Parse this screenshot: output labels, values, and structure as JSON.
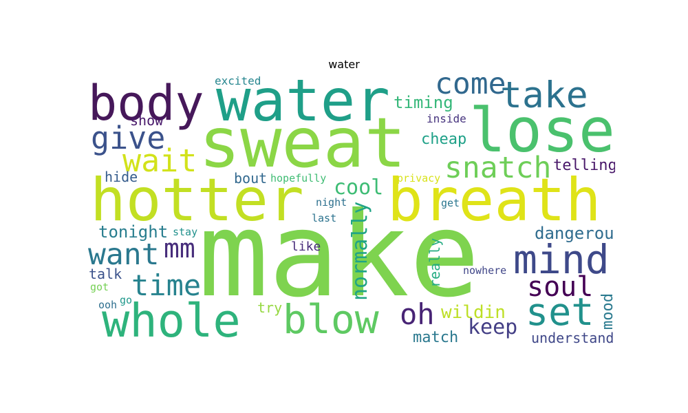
{
  "title": "water",
  "cloud": {
    "words": [
      {
        "text": "make",
        "color": "#7ed34f"
      },
      {
        "text": "sweat",
        "color": "#8bd646"
      },
      {
        "text": "hotter",
        "color": "#c2df23"
      },
      {
        "text": "breath",
        "color": "#dfe318"
      },
      {
        "text": "water",
        "color": "#1f9f88"
      },
      {
        "text": "lose",
        "color": "#4ac16d"
      },
      {
        "text": "body",
        "color": "#46185a"
      },
      {
        "text": "whole",
        "color": "#2eb37c"
      },
      {
        "text": "blow",
        "color": "#5ec962"
      },
      {
        "text": "mind",
        "color": "#3e4989"
      },
      {
        "text": "take",
        "color": "#2c728e"
      },
      {
        "text": "set",
        "color": "#21918c"
      },
      {
        "text": "come",
        "color": "#31688e"
      },
      {
        "text": "give",
        "color": "#3b528b"
      },
      {
        "text": "wait",
        "color": "#d2e21b"
      },
      {
        "text": "snatch",
        "color": "#6ece58"
      },
      {
        "text": "want",
        "color": "#2a788e"
      },
      {
        "text": "time",
        "color": "#26828e"
      },
      {
        "text": "soul",
        "color": "#440154"
      },
      {
        "text": "oh",
        "color": "#482475"
      },
      {
        "text": "mm",
        "color": "#472d7b"
      },
      {
        "text": "cool",
        "color": "#3dbc74"
      },
      {
        "text": "normally",
        "color": "#20a486"
      },
      {
        "text": "keep",
        "color": "#433e85"
      },
      {
        "text": "wildin",
        "color": "#bddf26"
      },
      {
        "text": "dangerous",
        "color": "#2f6c8e"
      },
      {
        "text": "tonight",
        "color": "#287d8e"
      },
      {
        "text": "timing",
        "color": "#35b779"
      },
      {
        "text": "telling",
        "color": "#481769"
      },
      {
        "text": "match",
        "color": "#2a788e"
      },
      {
        "text": "understand",
        "color": "#3f4788"
      },
      {
        "text": "mood",
        "color": "#29798e"
      },
      {
        "text": "cheap",
        "color": "#1fa188"
      },
      {
        "text": "show",
        "color": "#48186a"
      },
      {
        "text": "hide",
        "color": "#365d8d"
      },
      {
        "text": "bout",
        "color": "#31688e"
      },
      {
        "text": "talk",
        "color": "#3b528b"
      },
      {
        "text": "really",
        "color": "#25ac82"
      },
      {
        "text": "try",
        "color": "#95d840"
      },
      {
        "text": "like",
        "color": "#472c7a"
      },
      {
        "text": "excited",
        "color": "#25858e"
      },
      {
        "text": "inside",
        "color": "#46337e"
      },
      {
        "text": "hopefully",
        "color": "#3fbc73"
      },
      {
        "text": "privacy",
        "color": "#d8e219"
      },
      {
        "text": "night",
        "color": "#2d708e"
      },
      {
        "text": "get",
        "color": "#2a768e"
      },
      {
        "text": "last",
        "color": "#2c738e"
      },
      {
        "text": "stay",
        "color": "#21918c"
      },
      {
        "text": "nowhere",
        "color": "#404688"
      },
      {
        "text": "got",
        "color": "#75d054"
      },
      {
        "text": "ooh",
        "color": "#2e6f8e"
      },
      {
        "text": "go",
        "color": "#1f988b"
      }
    ]
  }
}
